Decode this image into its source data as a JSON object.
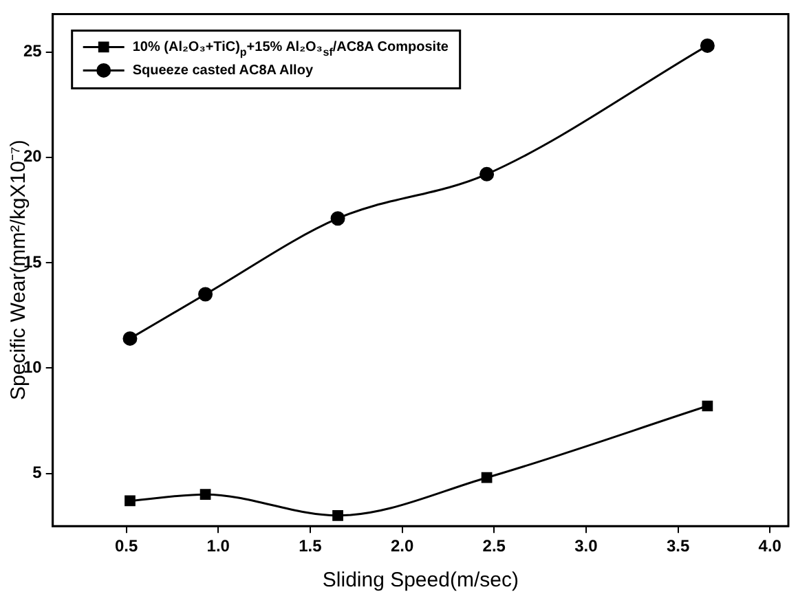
{
  "chart_data": {
    "type": "line",
    "xlabel": "Sliding Speed(m/sec)",
    "ylabel": "Specific Wear(mm²/kgX10⁻⁷)",
    "xlim": [
      0.1,
      4.1
    ],
    "xticks": [
      {
        "value": 0.5,
        "label": "0.5"
      },
      {
        "value": 1,
        "label": "1.0"
      },
      {
        "value": 1.5,
        "label": "1.5"
      },
      {
        "value": 2,
        "label": "2.0"
      },
      {
        "value": 2.5,
        "label": "2.5"
      },
      {
        "value": 3,
        "label": "3.0"
      },
      {
        "value": 3.5,
        "label": "3.5"
      },
      {
        "value": 4,
        "label": "4.0"
      }
    ],
    "ylim": [
      2.5,
      26.8
    ],
    "yticks": [
      5,
      10,
      15,
      20,
      25
    ],
    "x": [
      0.52,
      0.93,
      1.65,
      2.46,
      3.66
    ],
    "series": [
      {
        "name": "10% (Al₂O₃+TiC)$_{p}$+15% Al₂O₃$_{sf}$/AC8A Composite",
        "color": "#000000",
        "marker": "square",
        "values": [
          3.7,
          4.0,
          3.0,
          4.8,
          8.2
        ]
      },
      {
        "name": "Squeeze casted AC8A Alloy",
        "color": "#000000",
        "marker": "circle",
        "values": [
          11.4,
          13.5,
          17.1,
          19.2,
          25.3
        ]
      }
    ],
    "grid": false,
    "legend": "top left",
    "line_style": "solid"
  }
}
